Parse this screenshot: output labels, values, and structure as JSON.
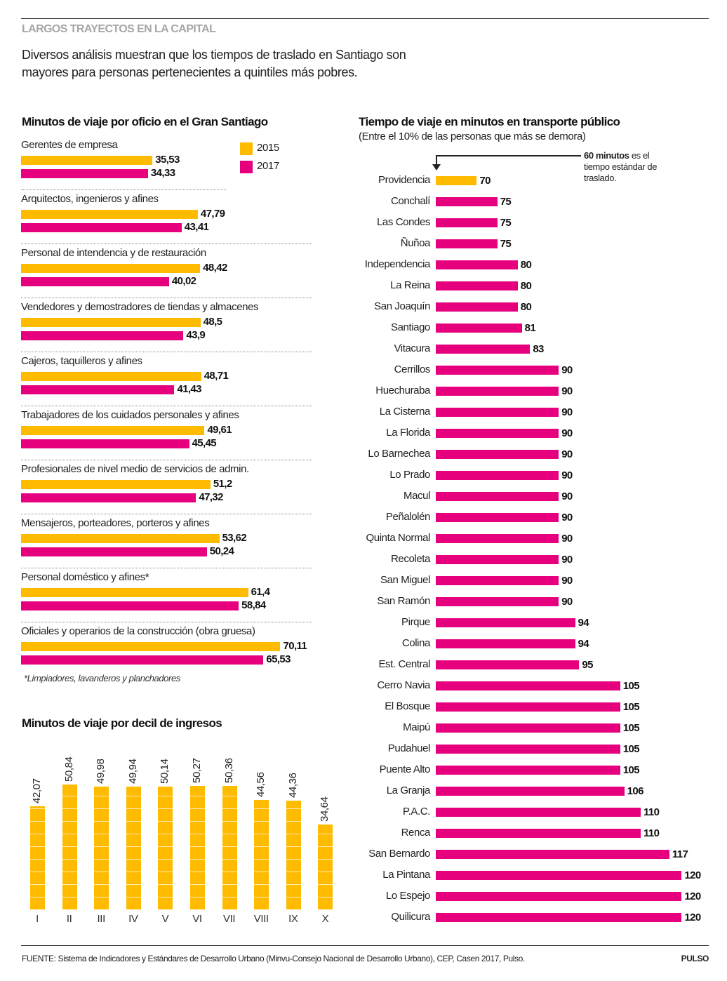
{
  "header": {
    "kicker": "LARGOS TRAYECTOS EN LA CAPITAL",
    "intro": "Diversos análisis muestran que los tiempos de traslado en Santiago son mayores para personas pertenecientes a quintiles más pobres."
  },
  "colors": {
    "y2015": "#FFBB00",
    "y2017": "#E6007E"
  },
  "chart_data": [
    {
      "type": "bar",
      "orientation": "horizontal",
      "title": "Minutos de viaje por oficio en el Gran Santiago",
      "legend": [
        "2015",
        "2017"
      ],
      "legend_position": "top-right",
      "categories": [
        "Gerentes de empresa",
        "Arquitectos, ingenieros y afines",
        "Personal de intendencia y de restauración",
        "Vendedores y demostradores de tiendas y almacenes",
        "Cajeros, taquilleros y afines",
        "Trabajadores de los cuidados personales y afines",
        "Profesionales de nivel medio de servicios de admin.",
        "Mensajeros, porteadores, porteros y afines",
        "Personal doméstico y afines*",
        "Oficiales y operarios de la construcción (obra gruesa)"
      ],
      "series": [
        {
          "name": "2015",
          "values": [
            35.53,
            47.79,
            48.42,
            48.5,
            48.71,
            49.61,
            51.2,
            53.62,
            61.4,
            70.11
          ],
          "labels": [
            "35,53",
            "47,79",
            "48,42",
            "48,5",
            "48,71",
            "49,61",
            "51,2",
            "53,62",
            "61,4",
            "70,11"
          ]
        },
        {
          "name": "2017",
          "values": [
            34.33,
            43.41,
            40.02,
            43.9,
            41.43,
            45.45,
            47.32,
            50.24,
            58.84,
            65.53
          ],
          "labels": [
            "34,33",
            "43,41",
            "40,02",
            "43,9",
            "41,43",
            "45,45",
            "47,32",
            "50,24",
            "58,84",
            "65,53"
          ]
        }
      ],
      "note": "*Limpiadores, lavanderos y planchadores",
      "xlim": [
        0,
        72
      ]
    },
    {
      "type": "bar",
      "orientation": "vertical",
      "title": "Minutos de viaje por decil de ingresos",
      "categories": [
        "I",
        "II",
        "III",
        "IV",
        "V",
        "VI",
        "VII",
        "VIII",
        "IX",
        "X"
      ],
      "values": [
        42.07,
        50.84,
        49.98,
        49.94,
        50.14,
        50.27,
        50.36,
        44.56,
        44.36,
        34.64
      ],
      "labels": [
        "42,07",
        "50,84",
        "49,98",
        "49,94",
        "50,14",
        "50,27",
        "50,36",
        "44,56",
        "44,36",
        "34,64"
      ],
      "ylim": [
        0,
        55
      ]
    },
    {
      "type": "bar",
      "orientation": "horizontal",
      "title": "Tiempo de viaje en minutos en transporte público",
      "subtitle": "(Entre el 10% de las personas que más se demora)",
      "annotation_bold": "60 minutos",
      "annotation_rest": " es el tiempo estándar de traslado.",
      "xlim": [
        60,
        120
      ],
      "categories": [
        "Providencia",
        "Conchalí",
        "Las Condes",
        "Ñuñoa",
        "Independencia",
        "La Reina",
        "San Joaquín",
        "Santiago",
        "Vitacura",
        "Cerrillos",
        "Huechuraba",
        "La Cisterna",
        "La Florida",
        "Lo Barnechea",
        "Lo Prado",
        "Macul",
        "Peñalolén",
        "Quinta Normal",
        "Recoleta",
        "San Miguel",
        "San Ramón",
        "Pirque",
        "Colina",
        "Est. Central",
        "Cerro Navia",
        "El Bosque",
        "Maipú",
        "Pudahuel",
        "Puente Alto",
        "La Granja",
        "P.A.C.",
        "Renca",
        "San Bernardo",
        "La Pintana",
        "Lo Espejo",
        "Quilicura"
      ],
      "values": [
        70,
        75,
        75,
        75,
        80,
        80,
        80,
        81,
        83,
        90,
        90,
        90,
        90,
        90,
        90,
        90,
        90,
        90,
        90,
        90,
        90,
        94,
        94,
        95,
        105,
        105,
        105,
        105,
        105,
        106,
        110,
        110,
        117,
        120,
        120,
        120
      ],
      "highlight": "Providencia"
    }
  ],
  "footer": {
    "source": "FUENTE: Sistema de Indicadores y Estándares de Desarrollo Urbano (Minvu-Consejo Nacional de Desarrollo Urbano), CEP, Casen 2017, Pulso.",
    "brand": "PULSO"
  }
}
